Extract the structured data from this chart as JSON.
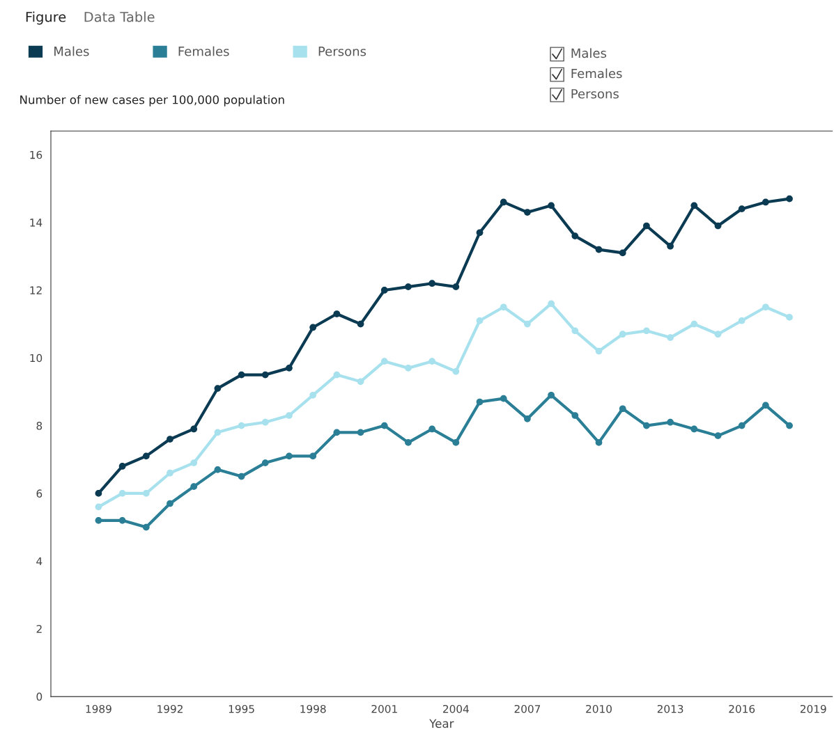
{
  "chart_data": {
    "type": "line",
    "ylabel": "Number of new cases per 100,000 population",
    "xlabel": "Year",
    "x": [
      1989,
      1990,
      1991,
      1992,
      1993,
      1994,
      1995,
      1996,
      1997,
      1998,
      1999,
      2000,
      2001,
      2002,
      2003,
      2004,
      2005,
      2006,
      2007,
      2008,
      2009,
      2010,
      2011,
      2012,
      2013,
      2014,
      2015,
      2016,
      2017,
      2018
    ],
    "series": [
      {
        "name": "Males",
        "color": "#0b3a53",
        "values": [
          6.0,
          6.8,
          7.1,
          7.6,
          7.9,
          9.1,
          9.5,
          9.5,
          9.7,
          10.9,
          11.3,
          11.0,
          12.0,
          12.1,
          12.2,
          12.1,
          13.7,
          14.6,
          14.3,
          14.5,
          13.6,
          13.2,
          13.1,
          13.9,
          13.3,
          14.5,
          13.9,
          14.4,
          14.6,
          14.7
        ]
      },
      {
        "name": "Females",
        "color": "#2a7f96",
        "values": [
          5.2,
          5.2,
          5.0,
          5.7,
          6.2,
          6.7,
          6.5,
          6.9,
          7.1,
          7.1,
          7.8,
          7.8,
          8.0,
          7.5,
          7.9,
          7.5,
          8.7,
          8.8,
          8.2,
          8.9,
          8.3,
          7.5,
          8.5,
          8.0,
          8.1,
          7.9,
          7.7,
          8.0,
          8.6,
          8.0
        ]
      },
      {
        "name": "Persons",
        "color": "#a8e1ee",
        "values": [
          5.6,
          6.0,
          6.0,
          6.6,
          6.9,
          7.8,
          8.0,
          8.1,
          8.3,
          8.9,
          9.5,
          9.3,
          9.9,
          9.7,
          9.9,
          9.6,
          11.1,
          11.5,
          11.0,
          11.6,
          10.8,
          10.2,
          10.7,
          10.8,
          10.6,
          11.0,
          10.7,
          11.1,
          11.5,
          11.2
        ]
      }
    ],
    "xlim": [
      1987,
      2019.8
    ],
    "ylim": [
      0,
      16.7
    ],
    "xticks": [
      1989,
      1992,
      1995,
      1998,
      2001,
      2004,
      2007,
      2010,
      2013,
      2016,
      2019
    ],
    "yticks": [
      0,
      2,
      4,
      6,
      8,
      10,
      12,
      14,
      16
    ],
    "marker": "circle",
    "line_style": "solid",
    "grid": false,
    "legend": "top left",
    "annotations": [
      "Figure",
      "Data Table",
      "Males",
      "Females",
      "Persons"
    ]
  }
}
